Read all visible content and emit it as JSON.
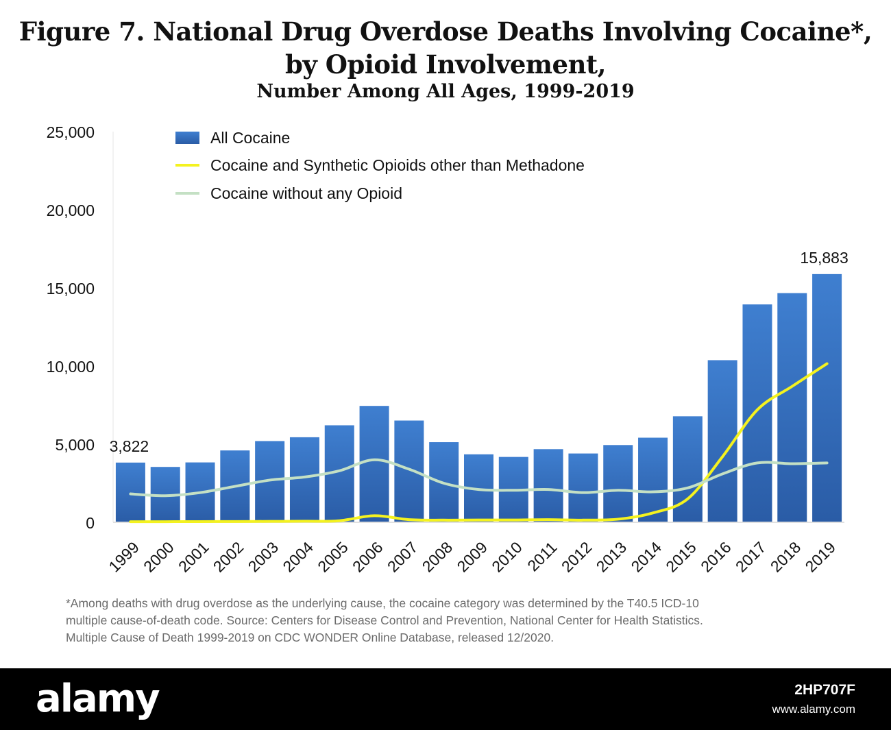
{
  "header": {
    "title_line1": "Figure 7. National Drug Overdose Deaths Involving Cocaine*,",
    "title_line2": "by Opioid Involvement,",
    "subtitle": "Number Among All Ages, 1999-2019"
  },
  "chart_data": {
    "type": "bar",
    "categories": [
      "1999",
      "2000",
      "2001",
      "2002",
      "2003",
      "2004",
      "2005",
      "2006",
      "2007",
      "2008",
      "2009",
      "2010",
      "2011",
      "2012",
      "2013",
      "2014",
      "2015",
      "2016",
      "2017",
      "2018",
      "2019"
    ],
    "series": [
      {
        "name": "All Cocaine",
        "kind": "bar",
        "color": "#3a78c9",
        "values": [
          3822,
          3544,
          3833,
          4599,
          5199,
          5443,
          6208,
          7448,
          6512,
          5129,
          4350,
          4183,
          4681,
          4404,
          4944,
          5415,
          6784,
          10375,
          13942,
          14666,
          15883
        ]
      },
      {
        "name": "Cocaine and Synthetic Opioids other than Methadone",
        "kind": "line",
        "color": "#f4f21f",
        "values": [
          40,
          40,
          45,
          50,
          60,
          70,
          100,
          420,
          170,
          140,
          150,
          150,
          170,
          140,
          200,
          600,
          1500,
          4200,
          7200,
          8700,
          10150
        ]
      },
      {
        "name": "Cocaine without any Opioid",
        "kind": "line",
        "color": "#c4e0c4",
        "values": [
          1820,
          1700,
          1900,
          2300,
          2700,
          2900,
          3300,
          4000,
          3400,
          2500,
          2100,
          2050,
          2100,
          1900,
          2050,
          1950,
          2200,
          3100,
          3800,
          3750,
          3800
        ]
      }
    ],
    "data_labels": [
      {
        "category": "1999",
        "text": "3,822"
      },
      {
        "category": "2019",
        "text": "15,883"
      }
    ],
    "y_ticks": [
      "0",
      "5,000",
      "10,000",
      "15,000",
      "20,000",
      "25,000"
    ],
    "ylim": [
      0,
      25000
    ],
    "legend_position": "top-left",
    "grid": false
  },
  "footnote": {
    "line1": "*Among deaths with drug overdose as the underlying cause, the cocaine category was determined by the T40.5 ICD-10",
    "line2": "multiple cause-of-death code.  Source: Centers for Disease Control and Prevention, National Center for Health Statistics.",
    "line3": "Multiple Cause of Death 1999-2019 on CDC WONDER Online Database, released 12/2020."
  },
  "watermark": {
    "brand": "alamy",
    "image_id": "2HP707F",
    "site": "www.alamy.com"
  }
}
